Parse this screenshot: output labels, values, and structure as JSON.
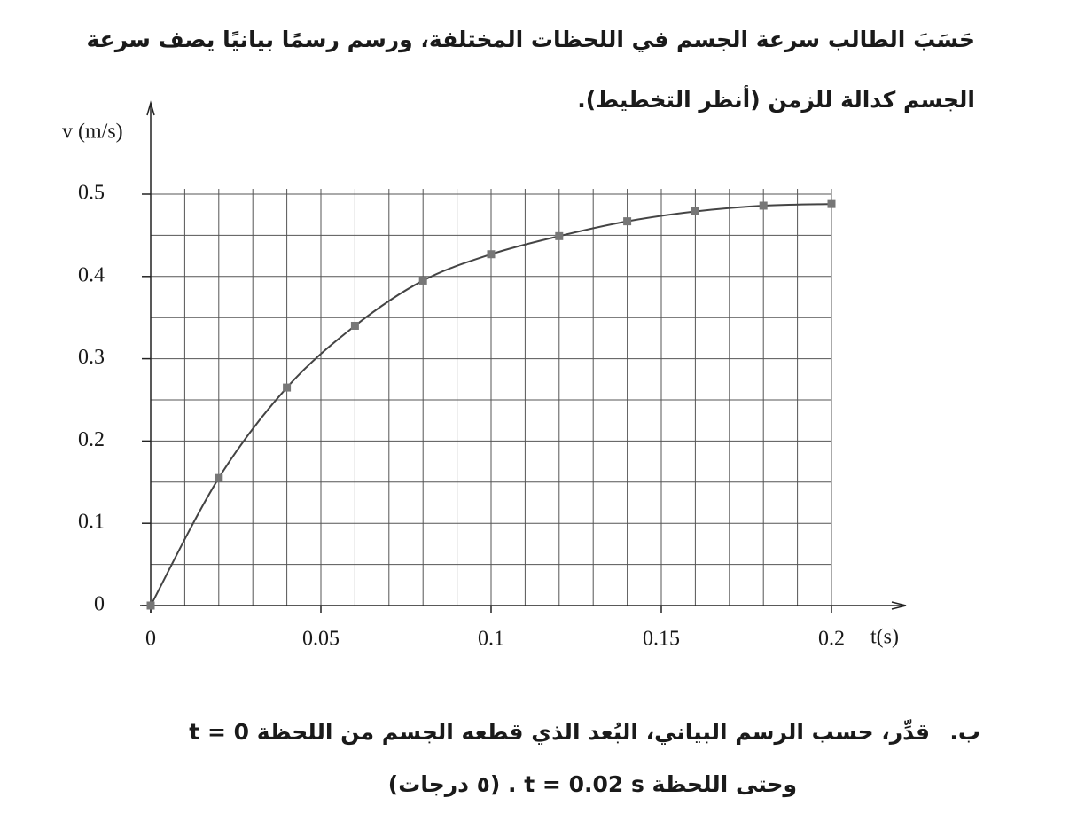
{
  "paragraph": [
    "حَسَبَ الطالب سرعة الجسم في اللحظات المختلفة، ورسم رسمًا بيانيًا يصف سرعة",
    "الجسم كدالة للزمن (أنظر التخطيط)."
  ],
  "chart_data": {
    "type": "line",
    "ylabel": "v (m/s)",
    "xlabel": "t(s)",
    "x": [
      0,
      0.02,
      0.04,
      0.06,
      0.08,
      0.1,
      0.12,
      0.14,
      0.16,
      0.18,
      0.2
    ],
    "values": [
      0,
      0.155,
      0.265,
      0.34,
      0.395,
      0.427,
      0.449,
      0.467,
      0.479,
      0.486,
      0.488
    ],
    "color": "#444444",
    "marker_color": "#777777",
    "xlim": [
      0,
      0.2
    ],
    "ylim": [
      0,
      0.5
    ],
    "xticks": [
      0,
      0.05,
      0.1,
      0.15,
      0.2
    ],
    "yticks": [
      0,
      0.1,
      0.2,
      0.3,
      0.4,
      0.5
    ],
    "grid": true,
    "xgrid_step": 0.01,
    "ygrid_step": 0.05
  },
  "question": {
    "marker": "ب.",
    "lines": [
      "قدِّر، حسب الرسم البياني، البُعد الذي قطعه الجسم من اللحظة t = 0",
      "وحتى اللحظة t = 0.02 s .  (٥ درجات)"
    ]
  }
}
